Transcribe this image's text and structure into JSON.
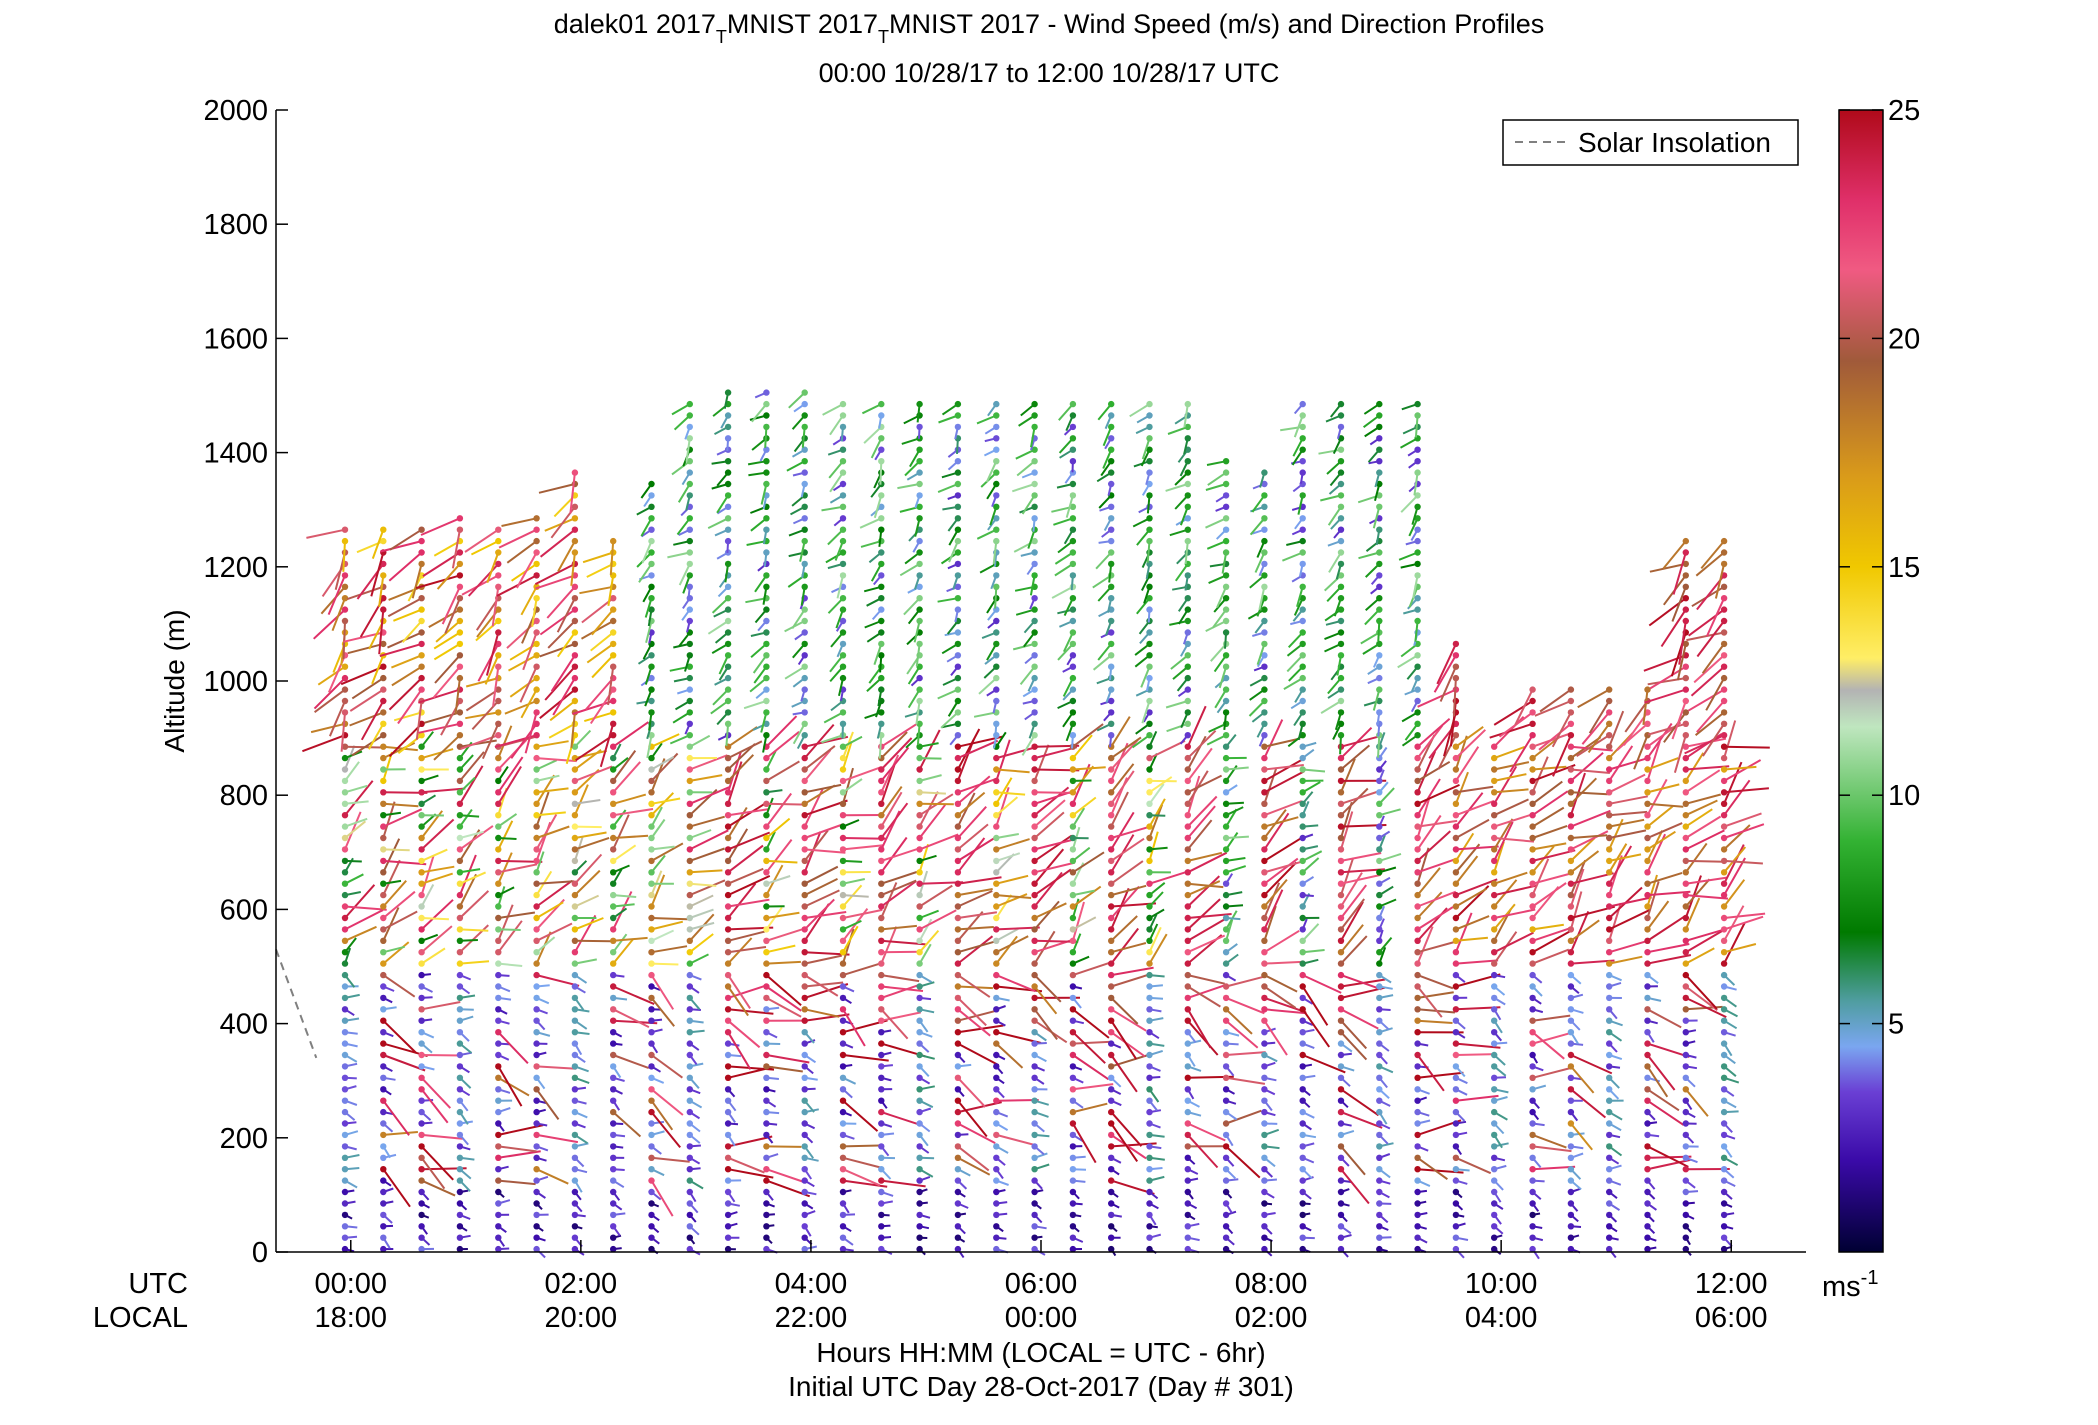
{
  "chart_data": {
    "type": "scatter",
    "title_parts": [
      "dalek01 2017",
      "T",
      "MNIST 2017",
      "T",
      "MNIST 2017 - Wind Speed (m/s) and Direction Profiles"
    ],
    "subtitle": "00:00 10/28/17 to 12:00 10/28/17  UTC",
    "ylabel": "Altitude (m)",
    "xlabel": "Hours HH:MM  (LOCAL = UTC - 6hr)",
    "xlabel2": "Initial UTC Day 28-Oct-2017 (Day # 301)",
    "row_labels": [
      "UTC",
      "LOCAL"
    ],
    "ylim": [
      0,
      2000
    ],
    "xlim_hours": [
      -0.65,
      12.65
    ],
    "yticks": [
      0,
      200,
      400,
      600,
      800,
      1000,
      1200,
      1400,
      1600,
      1800,
      2000
    ],
    "xticks": [
      {
        "hour": 0,
        "utc": "00:00",
        "local": "18:00"
      },
      {
        "hour": 2,
        "utc": "02:00",
        "local": "20:00"
      },
      {
        "hour": 4,
        "utc": "04:00",
        "local": "22:00"
      },
      {
        "hour": 6,
        "utc": "06:00",
        "local": "00:00"
      },
      {
        "hour": 8,
        "utc": "08:00",
        "local": "02:00"
      },
      {
        "hour": 10,
        "utc": "10:00",
        "local": "04:00"
      },
      {
        "hour": 12,
        "utc": "12:00",
        "local": "06:00"
      }
    ],
    "legend": {
      "label": "Solar Insolation",
      "placement": "top-right",
      "line_color": "#808080",
      "line_style": "dashed"
    },
    "colorbar": {
      "ticks": [
        5,
        10,
        15,
        20,
        25
      ],
      "range": [
        0,
        25
      ],
      "unit_base": "ms",
      "unit_exp": "-1",
      "stops": [
        {
          "v": 0,
          "c": "#000033"
        },
        {
          "v": 2,
          "c": "#3a0aa8"
        },
        {
          "v": 3.5,
          "c": "#6a3fd4"
        },
        {
          "v": 4.5,
          "c": "#7aa6f0"
        },
        {
          "v": 5.5,
          "c": "#4f9da0"
        },
        {
          "v": 7,
          "c": "#007a00"
        },
        {
          "v": 9,
          "c": "#33b233"
        },
        {
          "v": 11.5,
          "c": "#bfe6bf"
        },
        {
          "v": 12.3,
          "c": "#b3b3b3"
        },
        {
          "v": 13,
          "c": "#ffee66"
        },
        {
          "v": 15,
          "c": "#f0c800"
        },
        {
          "v": 17,
          "c": "#d99a1a"
        },
        {
          "v": 19.5,
          "c": "#a05a3a"
        },
        {
          "v": 21.5,
          "c": "#f05a82"
        },
        {
          "v": 23,
          "c": "#e0306a"
        },
        {
          "v": 25,
          "c": "#b00a1a"
        }
      ]
    },
    "solar_insolation": {
      "points": [
        [
          -0.65,
          530
        ],
        [
          -0.3,
          340
        ]
      ]
    },
    "profiles": {
      "start_hour": -0.05,
      "step_hours": 0.333,
      "count": 37,
      "top_altitudes": [
        1270,
        1280,
        1270,
        1300,
        1280,
        1300,
        1380,
        1260,
        1350,
        1500,
        1520,
        1520,
        1520,
        1500,
        1500,
        1500,
        1500,
        1500,
        1490,
        1490,
        1490,
        1490,
        1490,
        1400,
        1370,
        1500,
        1500,
        1500,
        1500,
        1080,
        900,
        1000,
        1000,
        1000,
        1000,
        1250,
        1250
      ]
    }
  }
}
